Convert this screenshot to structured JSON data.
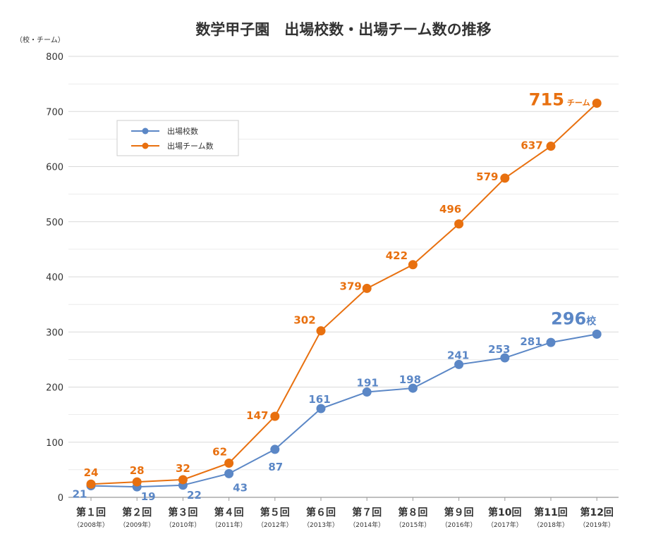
{
  "colors": {
    "schools": "#5b87c6",
    "teams": "#e8700f",
    "grid": "#d9d9d9",
    "axis": "#999999"
  },
  "chart_data": {
    "type": "line",
    "title": "数学甲子園　出場校数・出場チーム数の推移",
    "unit_label": "（校・チーム）",
    "ylim": [
      0,
      800
    ],
    "yticks": [
      "0",
      "100",
      "200",
      "300",
      "400",
      "500",
      "600",
      "700",
      "800"
    ],
    "categories": [
      "第１回",
      "第２回",
      "第３回",
      "第４回",
      "第５回",
      "第６回",
      "第７回",
      "第８回",
      "第９回",
      "第10回",
      "第11回",
      "第12回"
    ],
    "years": [
      "（2008年）",
      "（2009年）",
      "（2010年）",
      "（2011年）",
      "（2012年）",
      "（2013年）",
      "（2014年）",
      "（2015年）",
      "（2016年）",
      "（2017年）",
      "（2018年）",
      "（2019年）"
    ],
    "grid": true,
    "legend_position": "upper-left",
    "series": [
      {
        "name": "出場校数",
        "values": [
          21,
          19,
          22,
          43,
          87,
          161,
          191,
          198,
          241,
          253,
          281,
          296
        ]
      },
      {
        "name": "出場チーム数",
        "values": [
          24,
          28,
          32,
          62,
          147,
          302,
          379,
          422,
          496,
          579,
          637,
          715
        ]
      }
    ],
    "final_labels": {
      "schools_unit": "校",
      "teams_unit": "チーム"
    }
  }
}
